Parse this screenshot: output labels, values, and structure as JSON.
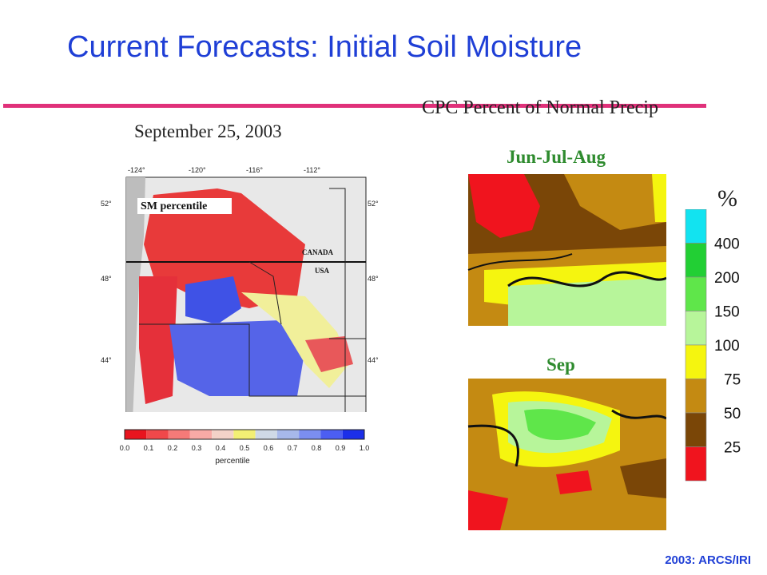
{
  "slide": {
    "title": "Current Forecasts:  Initial Soil Moisture",
    "footer": "2003: ARCS/IRI"
  },
  "left_map": {
    "date": "September 25, 2003",
    "inset_label": "SM percentile",
    "country_labels": [
      "CANADA",
      "USA"
    ],
    "lon_ticks": [
      "-124°",
      "-120°",
      "-116°",
      "-112°"
    ],
    "lat_ticks": [
      "52°",
      "48°",
      "44°"
    ],
    "colorbar_ticks": [
      "0.0",
      "0.1",
      "0.2",
      "0.3",
      "0.4",
      "0.5",
      "0.6",
      "0.7",
      "0.8",
      "0.9",
      "1.0"
    ],
    "colorbar_title": "percentile",
    "colorbar_colors": [
      "#e8141e",
      "#f0484a",
      "#f57a78",
      "#f8aaa6",
      "#f3d2c8",
      "#f2ef74",
      "#cfd9e6",
      "#a7b8ea",
      "#7b8ef0",
      "#4c5ef2",
      "#1c2fe9"
    ]
  },
  "right_maps": {
    "heading": "CPC Percent of Normal Precip",
    "panels": [
      {
        "label": "Jun-Jul-Aug"
      },
      {
        "label": "Sep"
      }
    ],
    "legend_unit": "%",
    "legend_ticks": [
      "400",
      "200",
      "150",
      "100",
      "75",
      "50",
      "25"
    ],
    "legend_colors": [
      "#12e3f0",
      "#22cf34",
      "#5fe64a",
      "#b7f59a",
      "#f5f50f",
      "#c48a12",
      "#7a4607",
      "#f0141e"
    ]
  }
}
